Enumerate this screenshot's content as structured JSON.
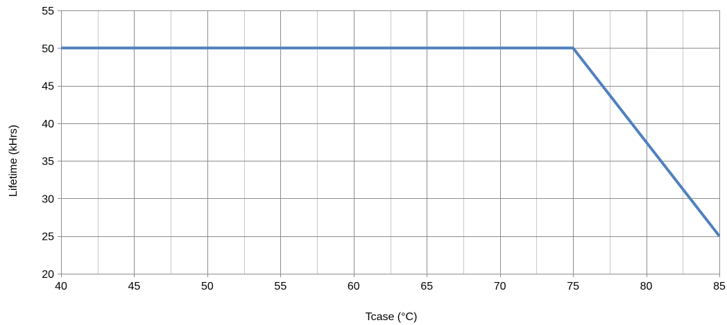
{
  "chart_data": {
    "type": "line",
    "title": "",
    "xlabel": "Tcase (°C)",
    "ylabel": "Lifetime (kHrs)",
    "xlim": [
      40,
      85
    ],
    "ylim": [
      20,
      55
    ],
    "x_ticks": [
      40,
      45,
      50,
      55,
      60,
      65,
      70,
      75,
      80,
      85
    ],
    "y_ticks": [
      20,
      25,
      30,
      35,
      40,
      45,
      50,
      55
    ],
    "x_minor_gridlines": [
      42.5,
      47.5,
      52.5,
      57.5,
      62.5,
      67.5,
      72.5,
      77.5,
      82.5
    ],
    "grid": true,
    "legend": "none",
    "series": [
      {
        "color": "#4f81bd",
        "x": [
          40,
          75,
          85
        ],
        "y": [
          50,
          50,
          25
        ]
      }
    ]
  },
  "colors": {
    "major_grid": "#8c8c8c",
    "minor_grid": "#c8c8c8",
    "series": "#4f81bd"
  }
}
